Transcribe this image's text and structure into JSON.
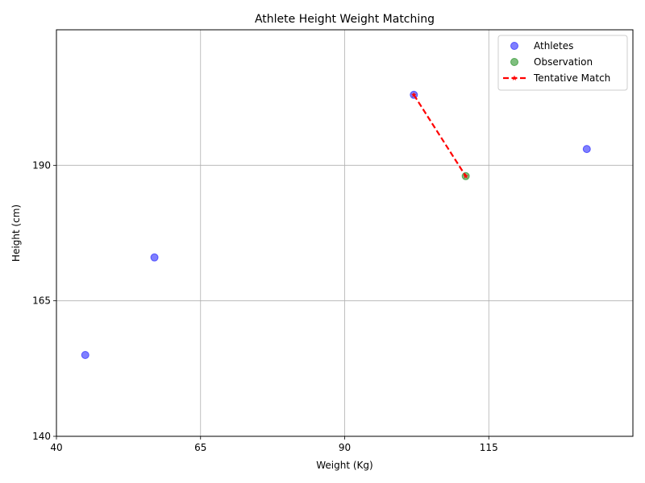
{
  "chart_data": {
    "type": "scatter",
    "title": "Athlete Height Weight Matching",
    "xlabel": "Weight (Kg)",
    "ylabel": "Height (cm)",
    "xlim": [
      40,
      140
    ],
    "ylim": [
      140,
      215
    ],
    "xticks": [
      40,
      65,
      90,
      115
    ],
    "yticks": [
      140,
      165,
      190
    ],
    "grid": true,
    "legend_position": "top-right",
    "series": [
      {
        "name": "Athletes",
        "kind": "scatter",
        "color": "#0000ff",
        "points": [
          {
            "x": 45,
            "y": 155
          },
          {
            "x": 57,
            "y": 173
          },
          {
            "x": 102,
            "y": 203
          },
          {
            "x": 132,
            "y": 193
          }
        ]
      },
      {
        "name": "Observation",
        "kind": "scatter",
        "color": "#008000",
        "points": [
          {
            "x": 111,
            "y": 188
          }
        ]
      },
      {
        "name": "Tentative Match",
        "kind": "line",
        "color": "#ff0000",
        "style": "dashed",
        "marker": "star",
        "points": [
          {
            "x": 102,
            "y": 203
          },
          {
            "x": 111,
            "y": 188
          }
        ]
      }
    ]
  }
}
